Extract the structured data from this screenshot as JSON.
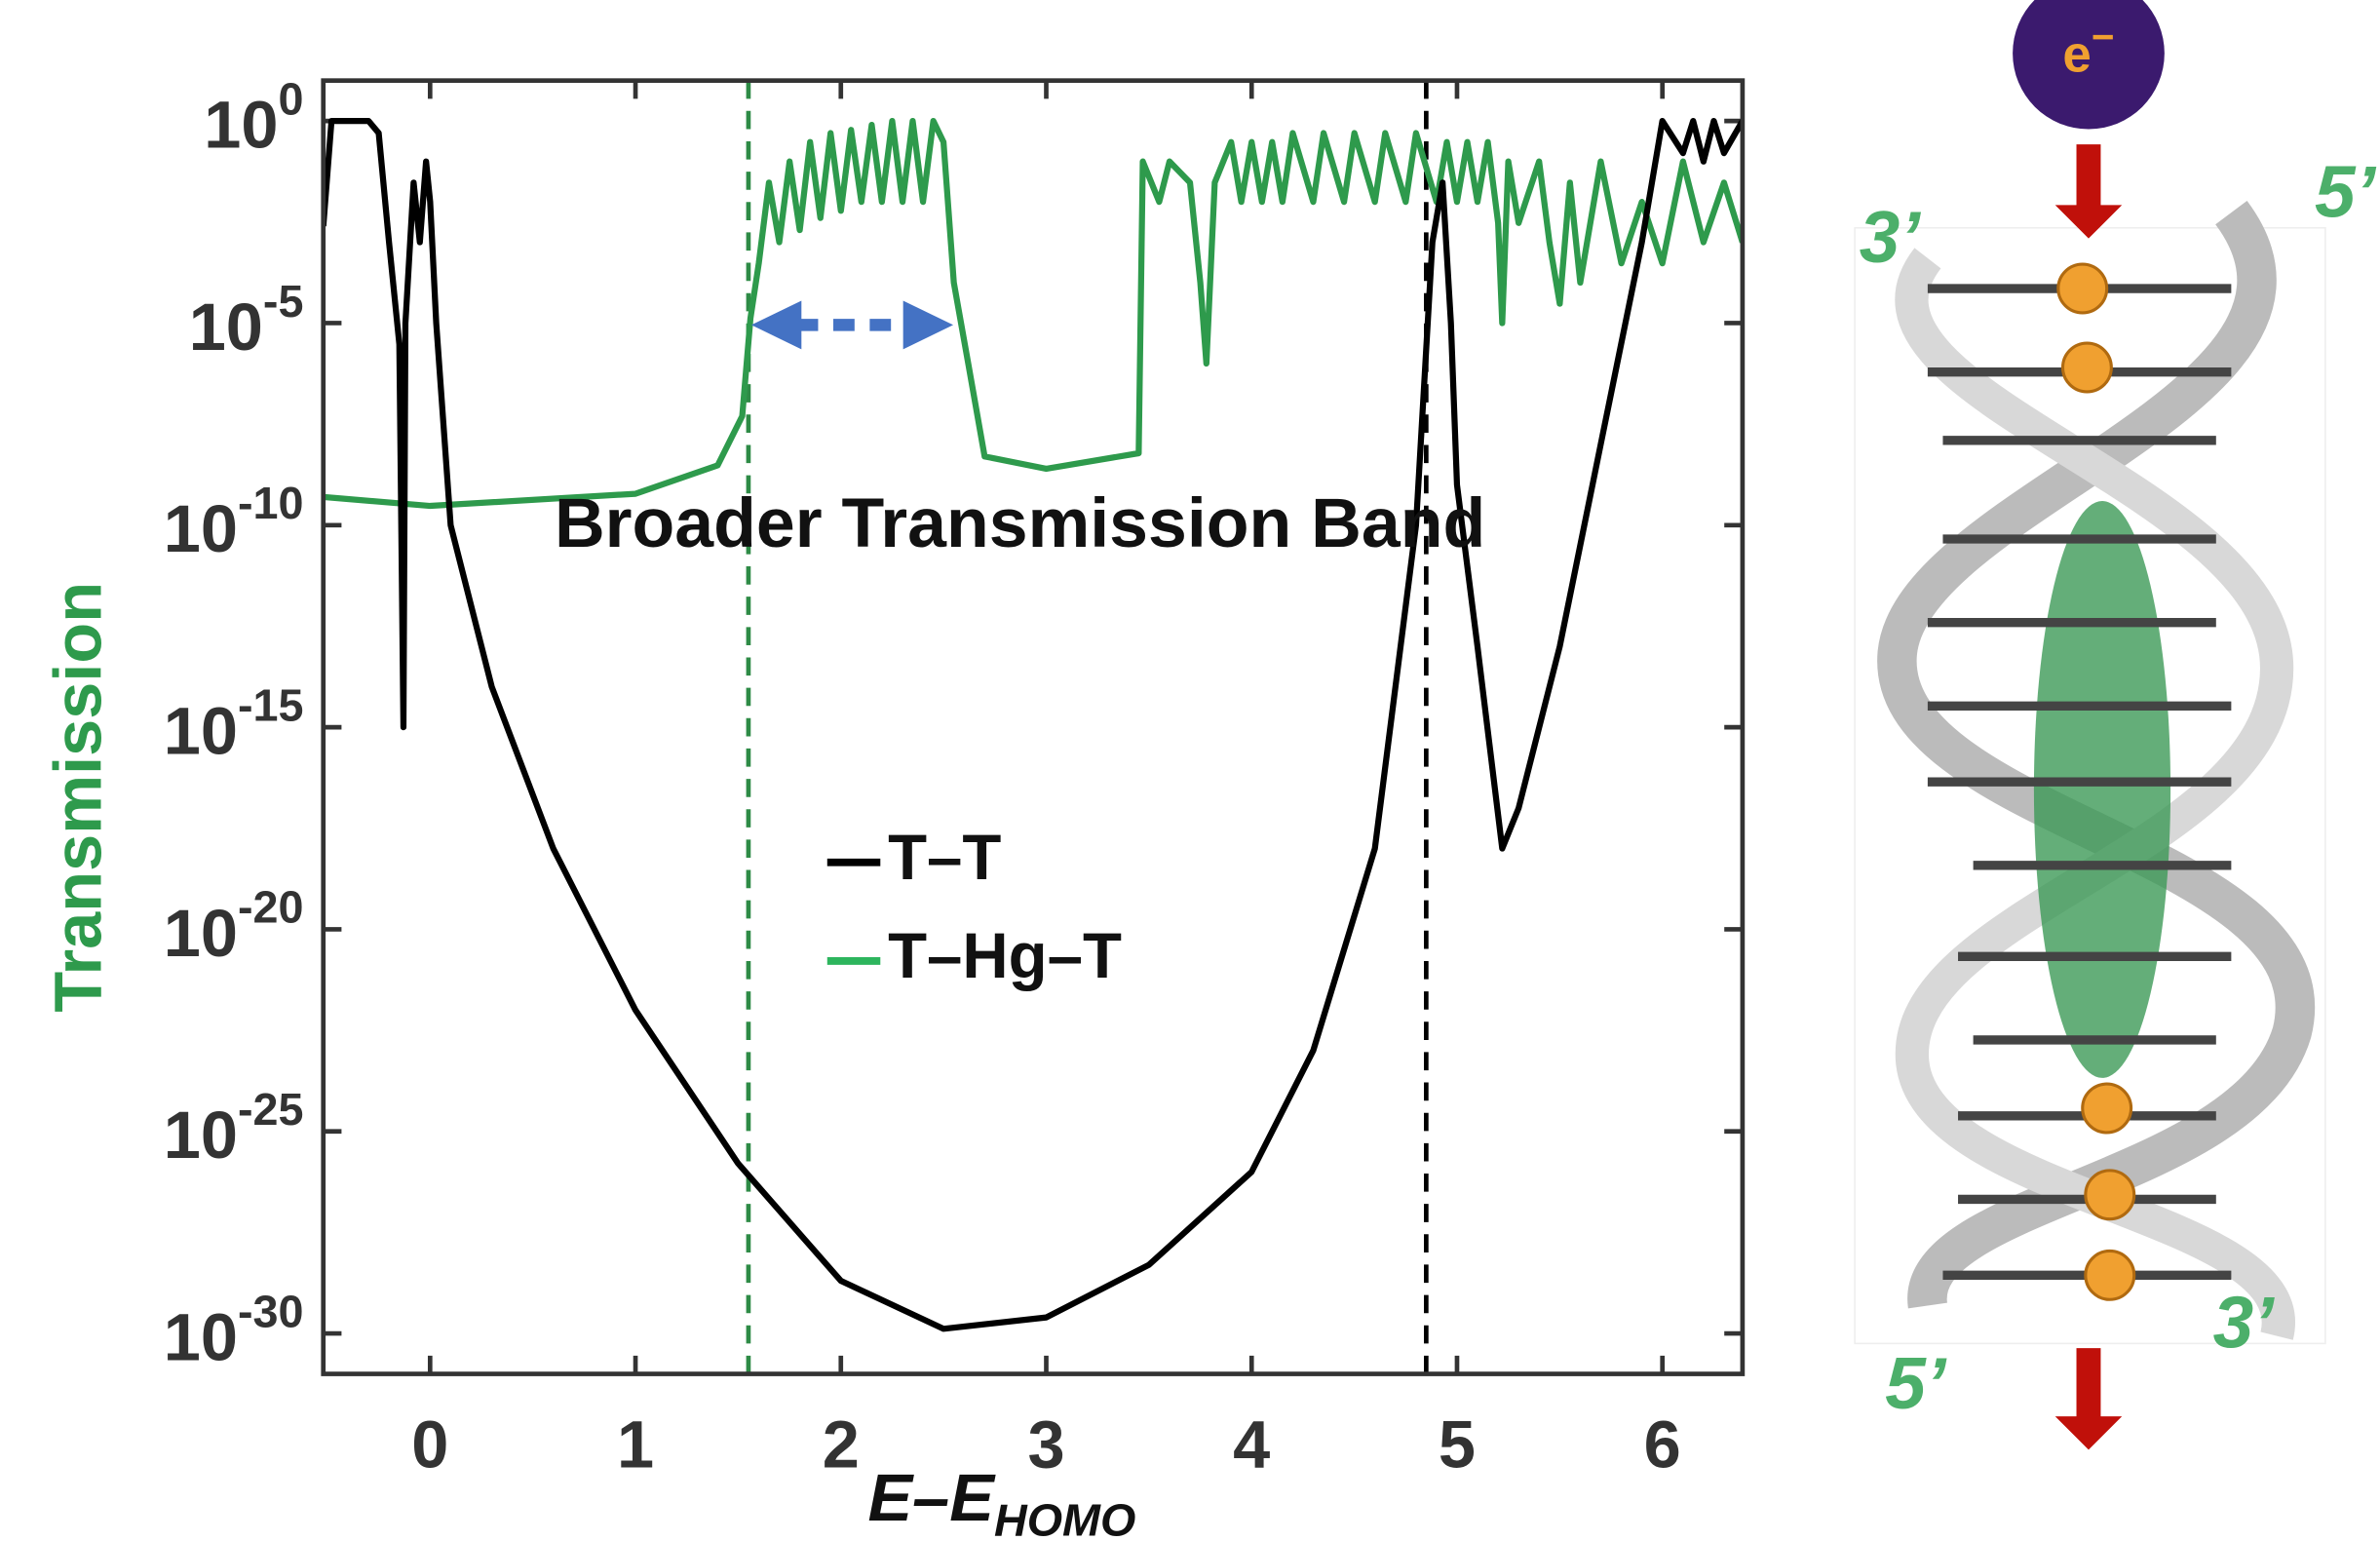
{
  "chart_data": {
    "type": "line",
    "y_label": "Transmission",
    "x_label": "E–E",
    "x_label_sub": "HOMO",
    "annotation": "Broader Transmission Band",
    "log_y": true,
    "xlim": [
      -0.52,
      6.39
    ],
    "ylim": [
      1e-31,
      10
    ],
    "xticks": [
      0,
      1,
      2,
      3,
      4,
      5,
      6
    ],
    "yticks": [
      {
        "value": 1,
        "label": "10",
        "exponent": "0"
      },
      {
        "value": 1e-05,
        "label": "10",
        "exponent": "-5"
      },
      {
        "value": 1e-10,
        "label": "10",
        "exponent": "-10"
      },
      {
        "value": 1e-15,
        "label": "10",
        "exponent": "-15"
      },
      {
        "value": 1e-20,
        "label": "10",
        "exponent": "-20"
      },
      {
        "value": 1e-25,
        "label": "10",
        "exponent": "-25"
      },
      {
        "value": 1e-30,
        "label": "10",
        "exponent": "-30"
      }
    ],
    "vlines": [
      {
        "x": 1.55,
        "color": "#2e8b46"
      },
      {
        "x": 4.85,
        "color": "#000000"
      }
    ],
    "series": [
      {
        "name": "T–T",
        "color": "#000000",
        "x": [
          -0.52,
          -0.48,
          -0.3,
          -0.25,
          -0.2,
          -0.15,
          -0.13,
          -0.12,
          -0.08,
          -0.05,
          -0.02,
          0.0,
          0.03,
          0.1,
          0.3,
          0.6,
          1.0,
          1.5,
          2.0,
          2.5,
          3.0,
          3.5,
          4.0,
          4.3,
          4.6,
          4.8,
          4.88,
          4.93,
          4.97,
          5.0,
          5.1,
          5.22,
          5.3,
          5.5,
          5.7,
          5.9,
          6.0,
          6.1,
          6.15,
          6.2,
          6.25,
          6.3,
          6.39
        ],
        "values": [
          0.0025,
          1,
          1,
          0.5,
          0.001,
          3e-06,
          1e-15,
          1e-05,
          0.03,
          0.001,
          0.1,
          0.01,
          1e-05,
          1e-10,
          1e-14,
          1e-18,
          1e-22,
          1.6e-26,
          2e-29,
          1.3e-30,
          2.5e-30,
          5e-29,
          1e-26,
          1e-23,
          1e-18,
          1e-10,
          0.001,
          0.03,
          1e-05,
          1e-09,
          1e-13,
          1e-18,
          1e-17,
          1e-13,
          1e-08,
          0.001,
          1,
          0.16,
          1,
          0.1,
          1,
          0.16,
          1
        ]
      },
      {
        "name": "T–Hg–T",
        "color": "#2e9a4c",
        "x": [
          -0.52,
          0,
          1.0,
          1.4,
          1.52,
          1.56,
          1.6,
          1.65,
          1.7,
          1.75,
          1.8,
          1.85,
          1.9,
          1.95,
          2.0,
          2.05,
          2.1,
          2.15,
          2.2,
          2.25,
          2.3,
          2.35,
          2.4,
          2.45,
          2.5,
          2.55,
          2.62,
          2.7,
          3.0,
          3.45,
          3.47,
          3.55,
          3.6,
          3.7,
          3.75,
          3.78,
          3.82,
          3.9,
          3.95,
          4.0,
          4.05,
          4.1,
          4.15,
          4.2,
          4.3,
          4.35,
          4.45,
          4.5,
          4.6,
          4.65,
          4.75,
          4.8,
          4.9,
          4.95,
          5.0,
          5.05,
          5.1,
          5.15,
          5.2,
          5.22,
          5.25,
          5.3,
          5.4,
          5.45,
          5.5,
          5.55,
          5.6,
          5.7,
          5.8,
          5.9,
          6.0,
          6.1,
          6.2,
          6.3,
          6.39
        ],
        "values": [
          5e-10,
          3e-10,
          6e-10,
          3e-09,
          5e-08,
          1.3e-05,
          0.0003,
          0.03,
          0.001,
          0.1,
          0.002,
          0.3,
          0.004,
          0.5,
          0.006,
          0.6,
          0.01,
          0.8,
          0.01,
          1,
          0.01,
          1,
          0.01,
          1,
          0.3,
          0.0001,
          1e-06,
          5e-09,
          2.5e-09,
          6e-09,
          0.1,
          0.01,
          0.1,
          0.03,
          0.0001,
          1e-06,
          0.03,
          0.3,
          0.01,
          0.3,
          0.01,
          0.3,
          0.01,
          0.5,
          0.01,
          0.5,
          0.01,
          0.5,
          0.01,
          0.5,
          0.01,
          0.5,
          0.01,
          0.3,
          0.01,
          0.3,
          0.01,
          0.3,
          0.003,
          1e-05,
          0.1,
          0.003,
          0.1,
          0.001,
          3e-05,
          0.03,
          0.0001,
          0.1,
          0.0003,
          0.01,
          0.0003,
          0.1,
          0.001,
          0.03,
          0.001
        ]
      }
    ]
  },
  "figure": {
    "electron": "e",
    "electron_sup": "−",
    "end_labels": [
      "3’",
      "5’",
      "5’",
      "3’"
    ]
  }
}
